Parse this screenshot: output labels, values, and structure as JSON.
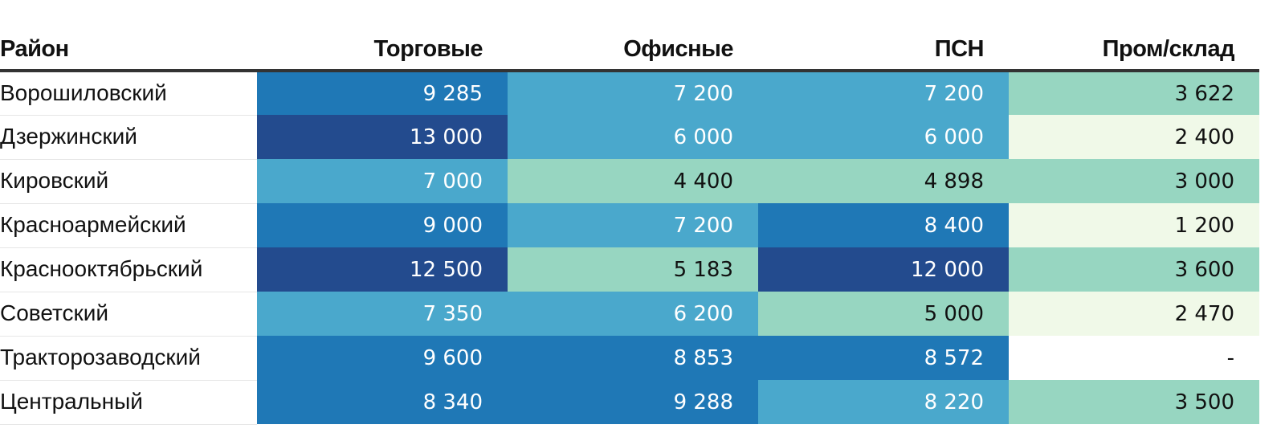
{
  "chart_data": {
    "type": "table",
    "columns": [
      "Район",
      "Торговые",
      "Офисные",
      "ПСН",
      "Пром/склад"
    ],
    "rows": [
      {
        "name": "Ворошиловский",
        "values": [
          "9 285",
          "7 200",
          "7 200",
          "3 622"
        ],
        "numbers": [
          9285,
          7200,
          7200,
          3622
        ]
      },
      {
        "name": "Дзержинский",
        "values": [
          "13 000",
          "6 000",
          "6 000",
          "2 400"
        ],
        "numbers": [
          13000,
          6000,
          6000,
          2400
        ]
      },
      {
        "name": "Кировский",
        "values": [
          "7 000",
          "4 400",
          "4 898",
          "3 000"
        ],
        "numbers": [
          7000,
          4400,
          4898,
          3000
        ]
      },
      {
        "name": "Красноармейский",
        "values": [
          "9 000",
          "7 200",
          "8 400",
          "1 200"
        ],
        "numbers": [
          9000,
          7200,
          8400,
          1200
        ]
      },
      {
        "name": "Краснооктябрьский",
        "values": [
          "12 500",
          "5 183",
          "12 000",
          "3 600"
        ],
        "numbers": [
          12500,
          5183,
          12000,
          3600
        ]
      },
      {
        "name": "Советский",
        "values": [
          "7 350",
          "6 200",
          "5 000",
          "2 470"
        ],
        "numbers": [
          7350,
          6200,
          5000,
          2470
        ]
      },
      {
        "name": "Тракторозаводский",
        "values": [
          "9 600",
          "8 853",
          "8 572",
          "-"
        ],
        "numbers": [
          9600,
          8853,
          8572,
          null
        ]
      },
      {
        "name": "Центральный",
        "values": [
          "8 340",
          "9 288",
          "8 220",
          "3 500"
        ],
        "numbers": [
          8340,
          9288,
          8220,
          3500
        ]
      }
    ],
    "color_scale": {
      "bins": [
        {
          "min": 0,
          "max": 3000,
          "color": "#f0f9e8"
        },
        {
          "min": 3000,
          "max": 5500,
          "color": "#97d6c1"
        },
        {
          "min": 5500,
          "max": 8300,
          "color": "#4aa8cc"
        },
        {
          "min": 8300,
          "max": 11000,
          "color": "#1f78b6"
        },
        {
          "min": 11000,
          "max": 99999,
          "color": "#234b8e"
        }
      ],
      "empty_color": "#ffffff",
      "light_text_from_bin": 2
    }
  }
}
